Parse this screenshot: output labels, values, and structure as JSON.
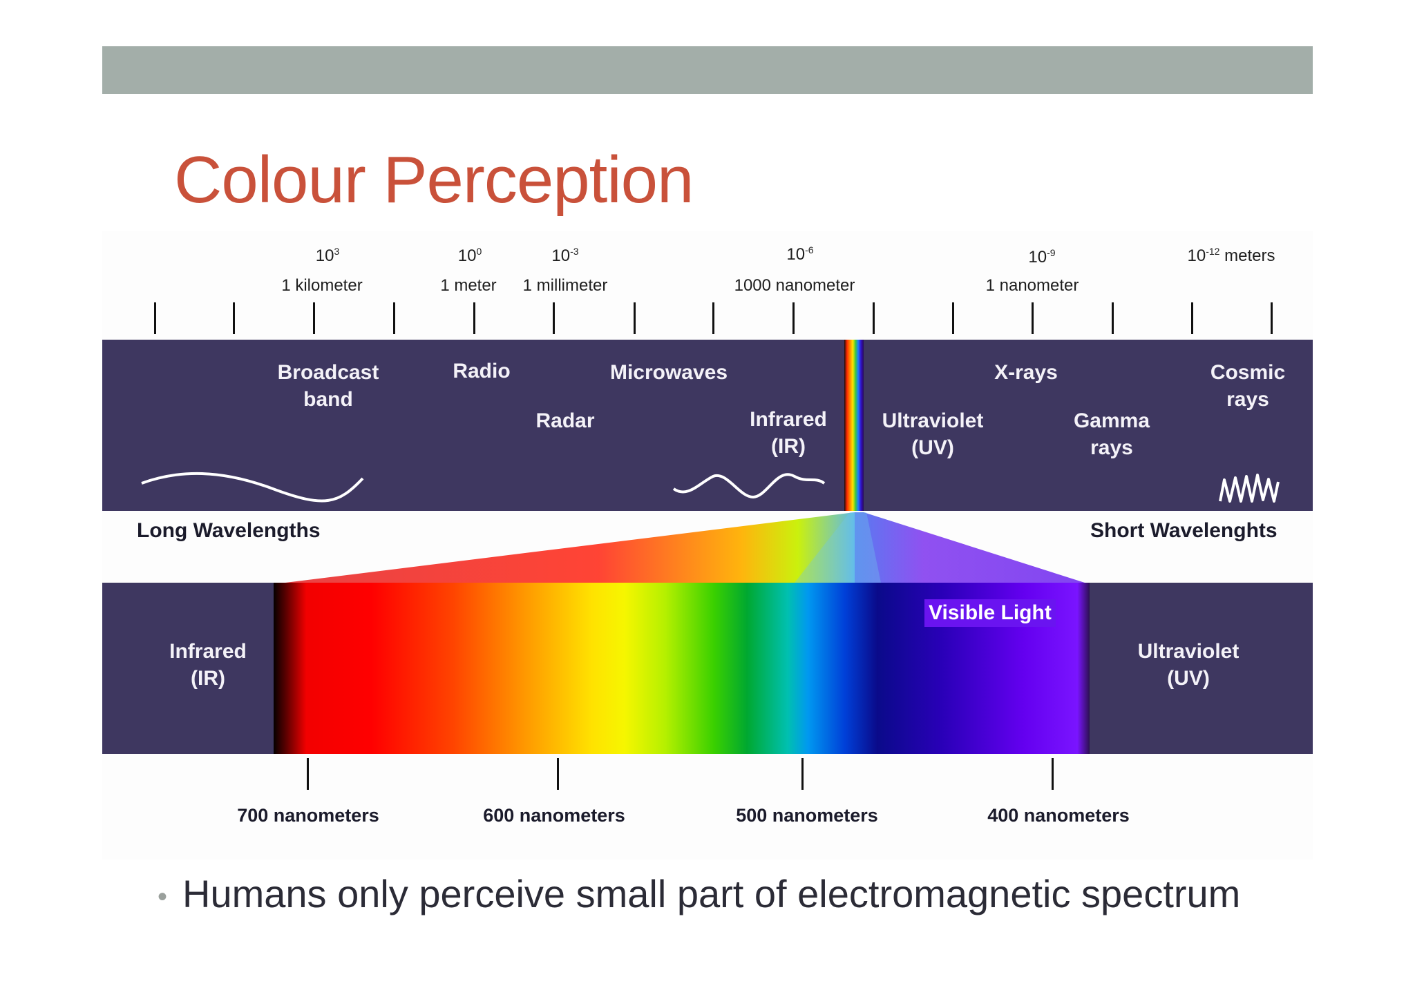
{
  "slide": {
    "title": "Colour Perception",
    "bullet": "Humans only perceive small part of electromagnetic spectrum"
  },
  "scale": {
    "exponents": [
      {
        "base": "10",
        "exp": "3",
        "suffix": ""
      },
      {
        "base": "10",
        "exp": "0",
        "suffix": ""
      },
      {
        "base": "10",
        "exp": "-3",
        "suffix": ""
      },
      {
        "base": "10",
        "exp": "-6",
        "suffix": ""
      },
      {
        "base": "10",
        "exp": "-9",
        "suffix": ""
      },
      {
        "base": "10",
        "exp": "-12",
        "suffix": " meters"
      }
    ],
    "units": [
      "1 kilometer",
      "1 meter",
      "1 millimeter",
      "1000 nanometer",
      "1 nanometer"
    ]
  },
  "bands": [
    "Broadcast\nband",
    "Radio",
    "Microwaves",
    "Radar",
    "Infrared\n(IR)",
    "Ultraviolet\n(UV)",
    "X-rays",
    "Gamma\nrays",
    "Cosmic\nrays"
  ],
  "direction": {
    "long": "Long Wavelengths",
    "short": "Short Wavelenghts"
  },
  "visible": {
    "label": "Visible Light",
    "left": "Infrared\n(IR)",
    "right": "Ultraviolet\n(UV)",
    "nm_labels": [
      "700 nanometers",
      "600 nanometers",
      "500 nanometers",
      "400 nanometers"
    ]
  },
  "colors": {
    "title": "#c9513a",
    "band": "#3e3760",
    "header_bar": "#a3aea9"
  }
}
